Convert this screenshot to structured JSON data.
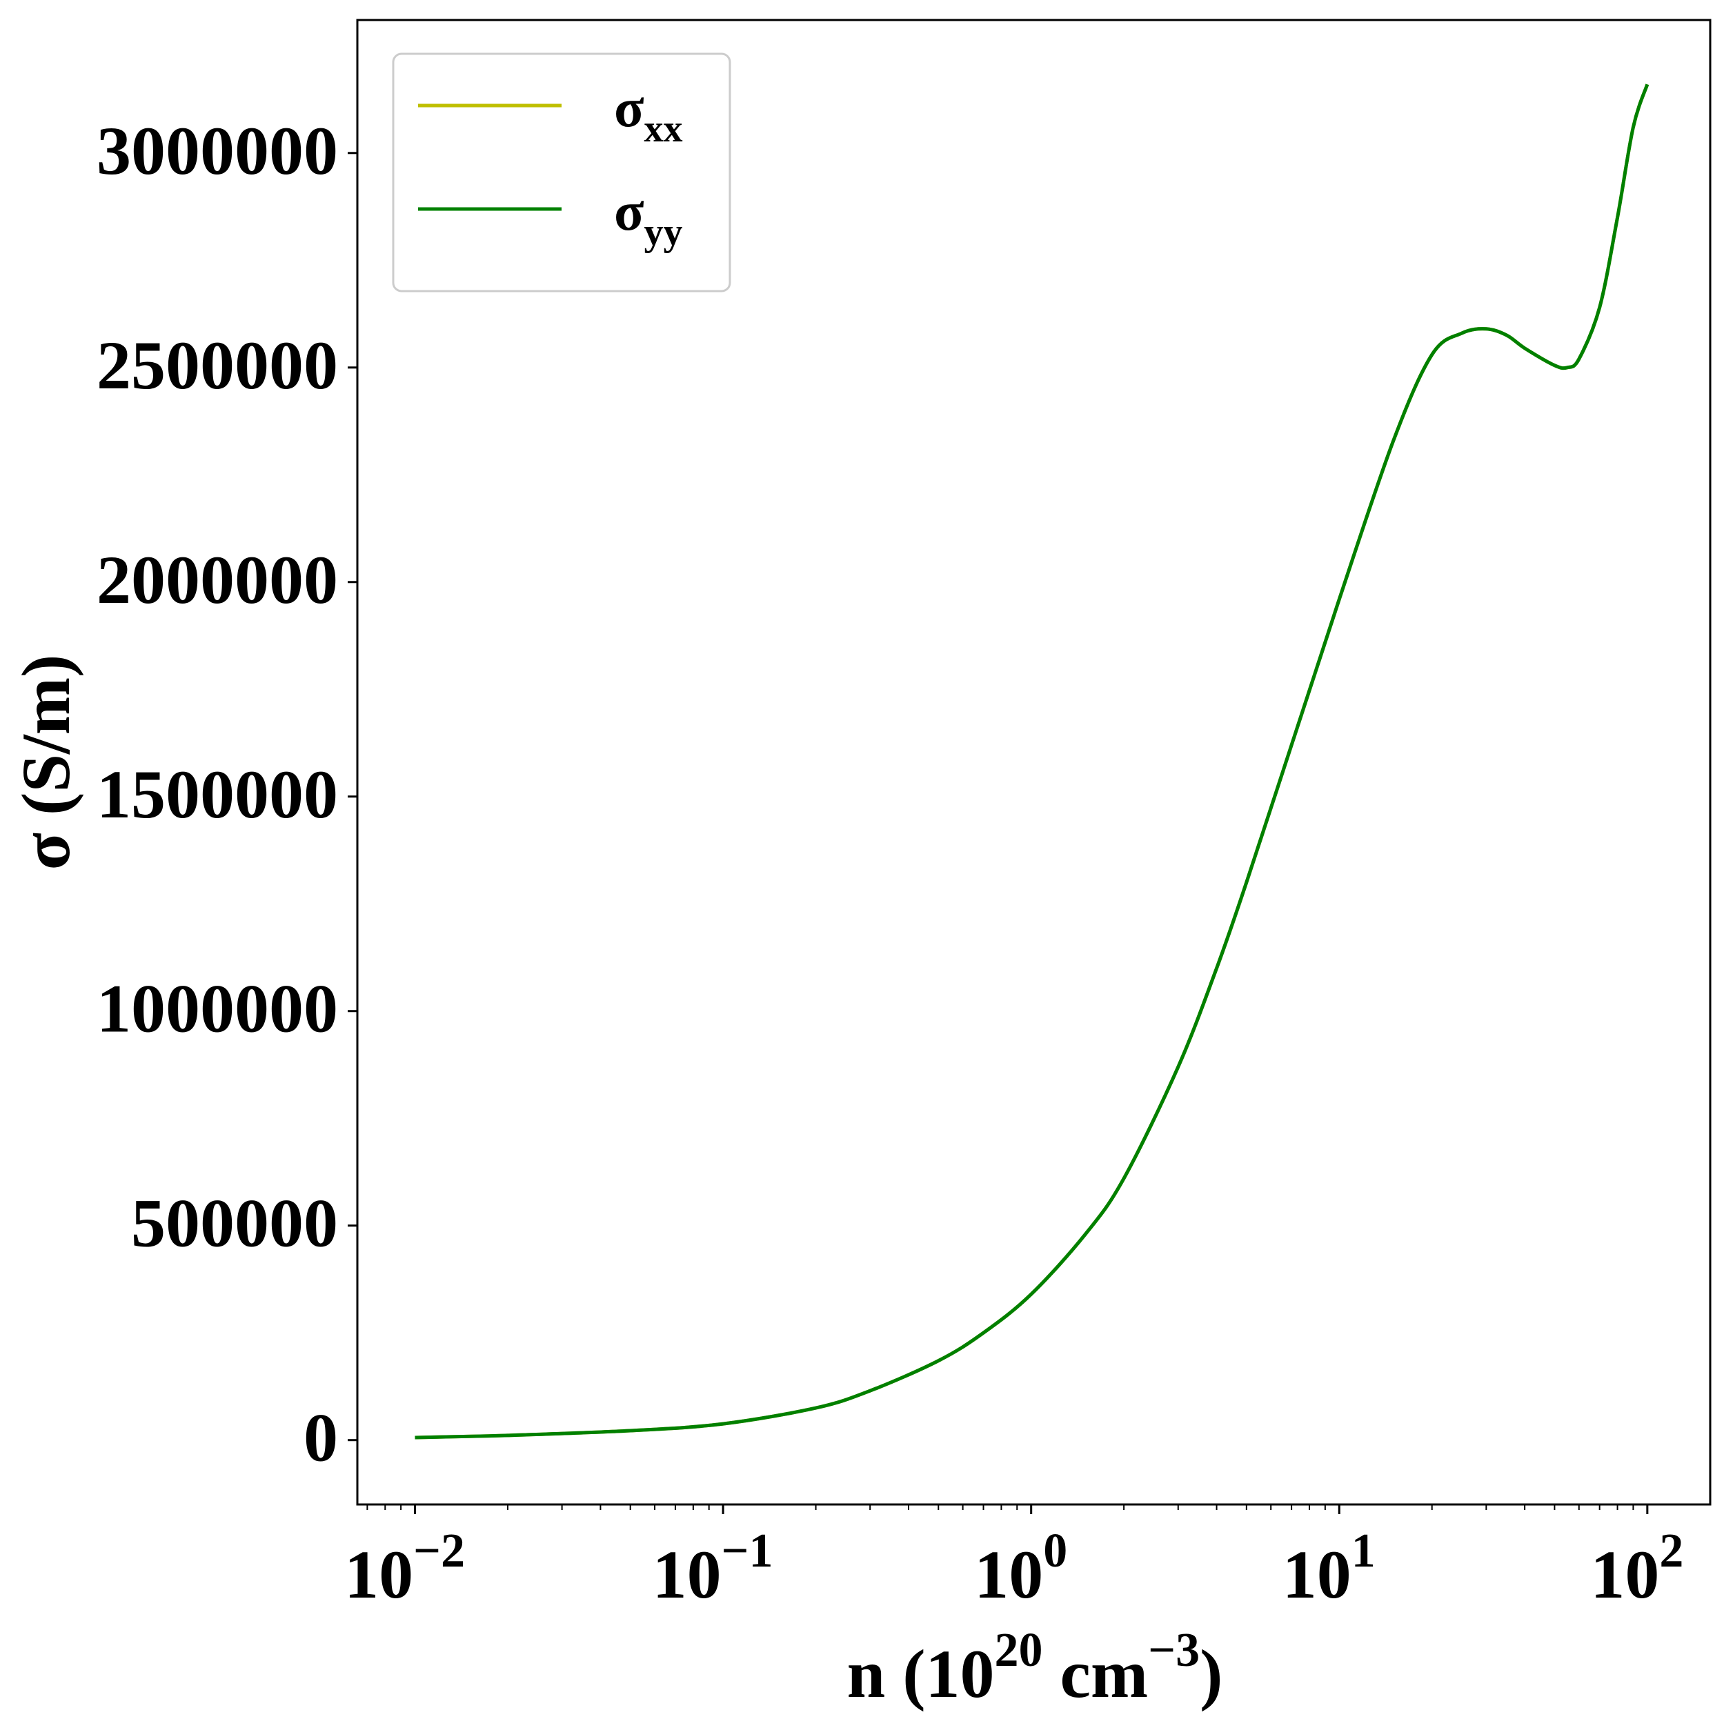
{
  "chart_data": {
    "type": "line",
    "xscale": "log",
    "xlim": [
      0.0065,
      160
    ],
    "ylim": [
      -150000,
      3310000
    ],
    "xlabel": {
      "text": "n (10",
      "sup1": "20",
      "mid": " cm",
      "sup2": "−3",
      "end": ")"
    },
    "ylabel": "σ (S/m)",
    "x_ticks": [
      {
        "value": 0.01,
        "base": "10",
        "exp": "−2"
      },
      {
        "value": 0.1,
        "base": "10",
        "exp": "−1"
      },
      {
        "value": 1,
        "base": "10",
        "exp": "0"
      },
      {
        "value": 10,
        "base": "10",
        "exp": "1"
      },
      {
        "value": 100,
        "base": "10",
        "exp": "2"
      }
    ],
    "y_ticks": [
      {
        "value": 0,
        "label": "0"
      },
      {
        "value": 500000,
        "label": "500000"
      },
      {
        "value": 1000000,
        "label": "1000000"
      },
      {
        "value": 1500000,
        "label": "1500000"
      },
      {
        "value": 2000000,
        "label": "2000000"
      },
      {
        "value": 2500000,
        "label": "2500000"
      },
      {
        "value": 3000000,
        "label": "3000000"
      }
    ],
    "grid": false,
    "legend_position": "top-left",
    "series": [
      {
        "name": "σ",
        "name_sub": "xx",
        "color": "#bfbf00",
        "x": [
          0.01,
          0.02,
          0.05,
          0.1,
          0.2,
          0.3,
          0.5,
          0.7,
          1,
          1.5,
          2,
          3,
          4,
          5,
          7,
          10,
          15,
          20,
          25,
          30,
          35,
          40,
          50,
          55,
          60,
          70,
          80,
          90,
          100
        ],
        "y": [
          6000,
          11000,
          22000,
          38000,
          75000,
          115000,
          185000,
          250000,
          340000,
          480000,
          610000,
          870000,
          1100000,
          1300000,
          1620000,
          1960000,
          2330000,
          2530000,
          2580000,
          2590000,
          2575000,
          2545000,
          2505000,
          2500000,
          2520000,
          2640000,
          2850000,
          3060000,
          3160000
        ]
      },
      {
        "name": "σ",
        "name_sub": "yy",
        "color": "#008000",
        "x": [
          0.01,
          0.02,
          0.05,
          0.1,
          0.2,
          0.3,
          0.5,
          0.7,
          1,
          1.5,
          2,
          3,
          4,
          5,
          7,
          10,
          15,
          20,
          25,
          30,
          35,
          40,
          50,
          55,
          60,
          70,
          80,
          90,
          100
        ],
        "y": [
          6000,
          11000,
          22000,
          38000,
          75000,
          115000,
          185000,
          250000,
          340000,
          480000,
          610000,
          870000,
          1100000,
          1300000,
          1620000,
          1960000,
          2330000,
          2530000,
          2580000,
          2590000,
          2575000,
          2545000,
          2505000,
          2500000,
          2520000,
          2640000,
          2850000,
          3060000,
          3160000
        ]
      }
    ]
  }
}
